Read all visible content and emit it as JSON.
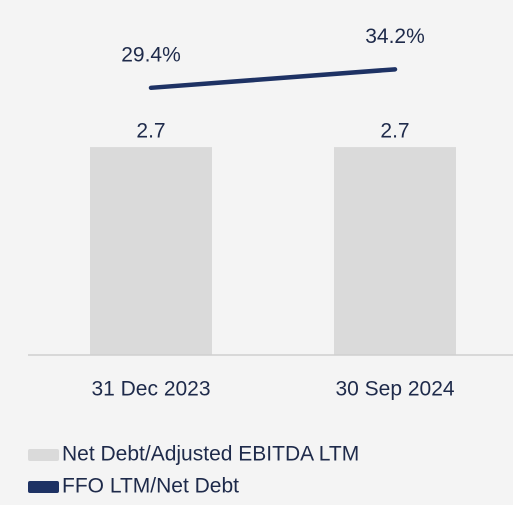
{
  "chart_data": {
    "type": "bar-line",
    "categories": [
      "31 Dec 2023",
      "30 Sep 2024"
    ],
    "series": [
      {
        "name": "Net Debt/Adjusted EBITDA LTM",
        "type": "bar",
        "color": "#dadada",
        "values": [
          2.7,
          2.7
        ]
      },
      {
        "name": "FFO LTM/Net Debt",
        "type": "line",
        "axis": "y2",
        "color": "#1e3264",
        "values": [
          29.4,
          34.2
        ],
        "value_labels": [
          "29.4%",
          "34.2%"
        ]
      }
    ],
    "ylim": [
      0,
      4
    ],
    "y2lim": [
      -40,
      40
    ],
    "legend": "bottom-left"
  }
}
